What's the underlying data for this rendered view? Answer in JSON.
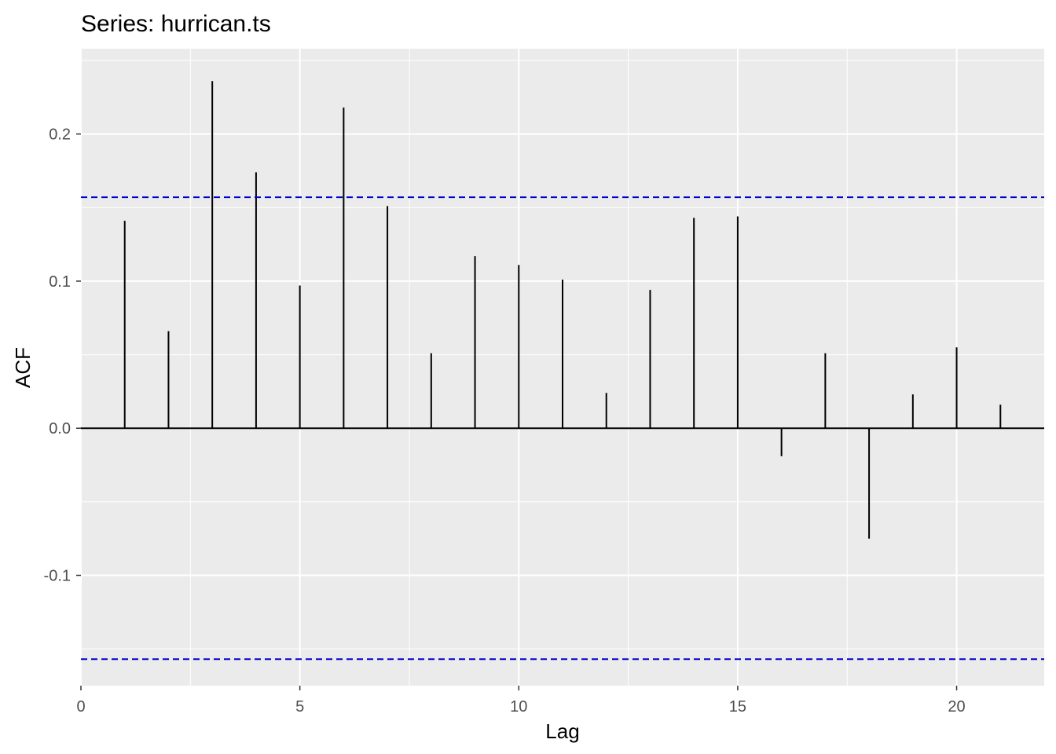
{
  "chart_data": {
    "type": "bar",
    "title": "Series: hurrican.ts",
    "xlabel": "Lag",
    "ylabel": "ACF",
    "xlim": [
      0,
      22
    ],
    "ylim": [
      -0.175,
      0.258
    ],
    "x_ticks": [
      0,
      5,
      10,
      15,
      20
    ],
    "x_tick_labels": [
      "0",
      "5",
      "10",
      "15",
      "20"
    ],
    "y_ticks": [
      -0.1,
      0.0,
      0.1,
      0.2
    ],
    "y_tick_labels": [
      "-0.1",
      "0.0",
      "0.1",
      "0.2"
    ],
    "grid": true,
    "confidence_band": 0.157,
    "lags": [
      1,
      2,
      3,
      4,
      5,
      6,
      7,
      8,
      9,
      10,
      11,
      12,
      13,
      14,
      15,
      16,
      17,
      18,
      19,
      20,
      21
    ],
    "values": [
      0.141,
      0.066,
      0.236,
      0.174,
      0.097,
      0.218,
      0.151,
      0.051,
      0.117,
      0.111,
      0.101,
      0.024,
      0.094,
      0.143,
      0.144,
      -0.019,
      0.051,
      -0.075,
      0.023,
      0.055,
      0.016
    ],
    "colors": {
      "panel": "#EBEBEB",
      "grid": "#FFFFFF",
      "bars": "#000000",
      "confidence": "#0000CC",
      "tick_text": "#4D4D4D",
      "title_text": "#000000"
    }
  }
}
